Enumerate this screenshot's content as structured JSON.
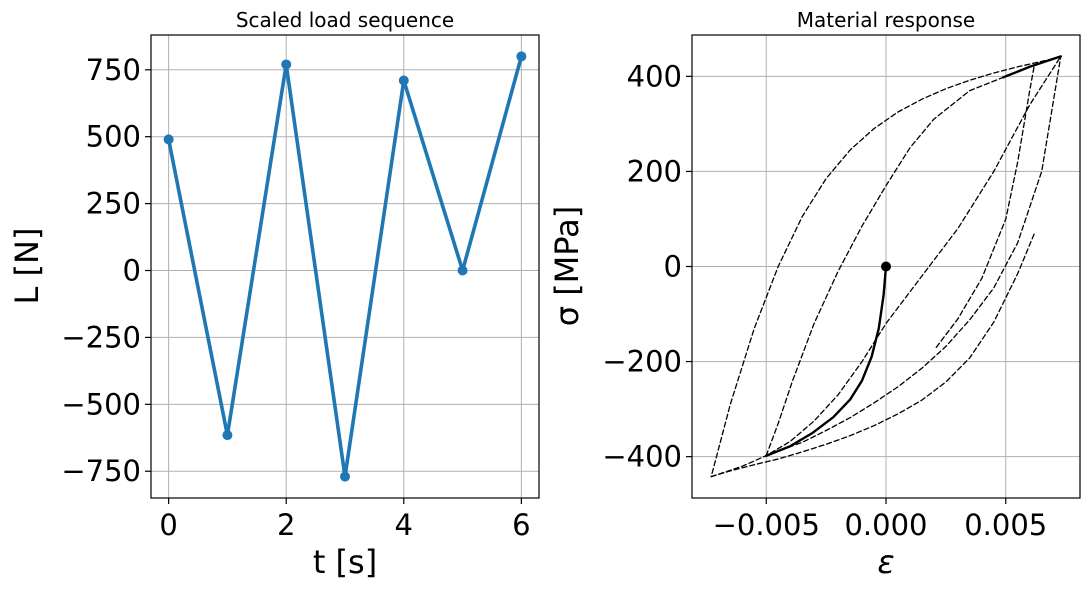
{
  "chart_data": [
    {
      "type": "line",
      "title": "Scaled load sequence",
      "xlabel": "t [s]",
      "ylabel": "L [N]",
      "xlim": [
        -0.3,
        6.3
      ],
      "ylim": [
        -850,
        880
      ],
      "xticks": [
        0,
        2,
        4,
        6
      ],
      "xtick_labels": [
        "0",
        "2",
        "4",
        "6"
      ],
      "yticks": [
        750,
        500,
        250,
        0,
        -250,
        -500,
        -750
      ],
      "ytick_labels": [
        "750",
        "500",
        "250",
        "0",
        "−250",
        "−500",
        "−750"
      ],
      "grid": true,
      "color": "#1f77b4",
      "series": [
        {
          "x": [
            0,
            1,
            2,
            3,
            4,
            5,
            6
          ],
          "y": [
            490,
            -615,
            770,
            -770,
            710,
            0,
            800
          ]
        }
      ]
    },
    {
      "type": "line",
      "title": "Material response",
      "xlabel": "ε",
      "ylabel": "σ [MPa]",
      "xlim": [
        -0.0081,
        0.0081
      ],
      "ylim": [
        -487,
        487
      ],
      "xticks": [
        -0.005,
        0.0,
        0.005
      ],
      "xtick_labels": [
        "−0.005",
        "0.000",
        "0.005"
      ],
      "yticks": [
        400,
        200,
        0,
        -200,
        -400
      ],
      "ytick_labels": [
        "400",
        "200",
        "0",
        "−200",
        "−400"
      ],
      "grid": true,
      "series": [
        {
          "style": "solid",
          "x": [
            0.0,
            -0.0001,
            -0.0003,
            -0.0006,
            -0.001,
            -0.0015,
            -0.0022,
            -0.0031,
            -0.004,
            -0.005
          ],
          "y": [
            0,
            -60,
            -130,
            -190,
            -240,
            -280,
            -317,
            -351,
            -378,
            -398
          ]
        },
        {
          "style": "solid",
          "x": [
            0.0049,
            0.0055,
            0.006,
            0.0067,
            0.0073
          ],
          "y": [
            398,
            410,
            420,
            432,
            442
          ]
        },
        {
          "style": "dashed",
          "x": [
            -0.005,
            -0.0045,
            -0.0039,
            -0.003,
            -0.002,
            -0.001,
            0.0,
            0.001,
            0.002,
            0.0035,
            0.0049
          ],
          "y": [
            -398,
            -330,
            -240,
            -120,
            -10,
            85,
            170,
            250,
            310,
            370,
            398
          ]
        },
        {
          "style": "dashed",
          "x": [
            -0.005,
            -0.0045,
            -0.0035,
            -0.0025,
            -0.0015,
            -0.0005,
            0.0005,
            0.0015,
            0.0025,
            0.0035,
            0.0045,
            0.0055,
            0.0065,
            0.0073
          ],
          "y": [
            -398,
            -388,
            -370,
            -345,
            -318,
            -287,
            -253,
            -214,
            -168,
            -112,
            -45,
            50,
            200,
            442
          ]
        },
        {
          "style": "dashed",
          "x": [
            -0.0073,
            -0.0067,
            -0.006,
            -0.005,
            -0.004,
            -0.003,
            -0.002,
            -0.001,
            0.0,
            0.0015,
            0.003,
            0.0045,
            0.006,
            0.0073
          ],
          "y": [
            -442,
            -432,
            -420,
            -398,
            -368,
            -325,
            -270,
            -200,
            -120,
            -20,
            80,
            200,
            340,
            442
          ]
        },
        {
          "style": "dashed",
          "x": [
            0.0073,
            0.0068,
            0.0062,
            0.0055,
            0.0045,
            0.0035,
            0.0025,
            0.0015,
            0.0005,
            -0.0005,
            -0.0015,
            -0.0025,
            -0.0035,
            -0.0045,
            -0.0055,
            -0.0065,
            -0.0073
          ],
          "y": [
            442,
            435,
            428,
            420,
            407,
            392,
            374,
            352,
            325,
            290,
            245,
            185,
            105,
            0,
            -130,
            -290,
            -442
          ]
        },
        {
          "style": "dashed",
          "x": [
            -0.0073,
            -0.0065,
            -0.0055,
            -0.0045,
            -0.0035,
            -0.0025,
            -0.0015,
            -0.0005,
            0.0005,
            0.0015,
            0.0025,
            0.0035,
            0.0045,
            0.0055,
            0.0062
          ],
          "y": [
            -442,
            -430,
            -417,
            -405,
            -390,
            -374,
            -356,
            -335,
            -310,
            -281,
            -243,
            -192,
            -117,
            -15,
            70
          ]
        },
        {
          "style": "dashed",
          "x": [
            0.0021,
            0.003,
            0.004,
            0.005,
            0.0055,
            0.006,
            0.0062
          ],
          "y": [
            -170,
            -110,
            -25,
            100,
            220,
            370,
            425
          ]
        }
      ],
      "marker": {
        "x": 0.0,
        "y": 0
      }
    }
  ]
}
